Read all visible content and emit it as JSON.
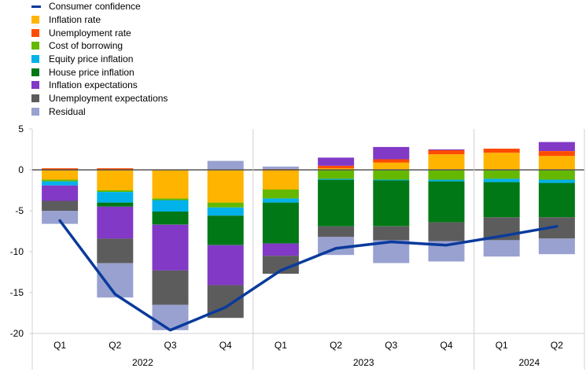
{
  "chart_data": {
    "type": "bar",
    "stacked": true,
    "categories": [
      "Q1",
      "Q2",
      "Q3",
      "Q4",
      "Q1",
      "Q2",
      "Q3",
      "Q4",
      "Q1",
      "Q2"
    ],
    "groups": [
      {
        "label": "2022",
        "count": 4
      },
      {
        "label": "2023",
        "count": 4
      },
      {
        "label": "2024",
        "count": 2
      }
    ],
    "ylim": [
      -20,
      5
    ],
    "yticks": [
      5,
      0,
      -5,
      -10,
      -15,
      -20
    ],
    "grid": false,
    "legend_position": "top-left",
    "line_series": {
      "name": "Consumer confidence",
      "color": "#0a3a9c",
      "values": [
        -6.2,
        -15.2,
        -19.6,
        -16.8,
        -12.3,
        -9.6,
        -8.8,
        -9.2,
        -8.1,
        -6.9
      ]
    },
    "series": [
      {
        "name": "Inflation rate",
        "color": "#ffb400",
        "values": [
          -1.2,
          -2.5,
          -3.5,
          -4.0,
          -2.4,
          0.2,
          0.9,
          1.9,
          2.1,
          1.7
        ]
      },
      {
        "name": "Unemployment rate",
        "color": "#ff4b00",
        "values": [
          0.2,
          0.2,
          0.0,
          0.0,
          0.1,
          0.3,
          0.4,
          0.5,
          0.5,
          0.6
        ]
      },
      {
        "name": "Cost of borrowing",
        "color": "#65b800",
        "values": [
          -0.2,
          -0.2,
          -0.2,
          -0.6,
          -1.1,
          -1.1,
          -1.2,
          -1.2,
          -1.1,
          -1.2
        ]
      },
      {
        "name": "Equity price inflation",
        "color": "#00b1ea",
        "values": [
          -0.5,
          -1.3,
          -1.4,
          -1.0,
          -0.5,
          -0.1,
          -0.1,
          -0.2,
          -0.4,
          -0.4
        ]
      },
      {
        "name": "House price inflation",
        "color": "#007816",
        "values": [
          0.0,
          -0.5,
          -1.6,
          -3.6,
          -5.0,
          -5.7,
          -5.6,
          -5.0,
          -4.3,
          -4.2
        ]
      },
      {
        "name": "Inflation expectations",
        "color": "#8139c6",
        "values": [
          -1.9,
          -3.9,
          -5.6,
          -4.9,
          -1.5,
          1.0,
          1.5,
          0.1,
          0.0,
          1.1
        ]
      },
      {
        "name": "Unemployment expectations",
        "color": "#5c5c5c",
        "values": [
          -1.2,
          -3.0,
          -4.2,
          -4.0,
          -2.2,
          -1.3,
          -1.7,
          -2.3,
          -2.8,
          -2.6
        ]
      },
      {
        "name": "Residual",
        "color": "#98a1d0",
        "values": [
          -1.6,
          -4.2,
          -3.1,
          1.1,
          0.3,
          -2.2,
          -2.8,
          -2.5,
          -2.0,
          -1.9
        ]
      }
    ]
  }
}
